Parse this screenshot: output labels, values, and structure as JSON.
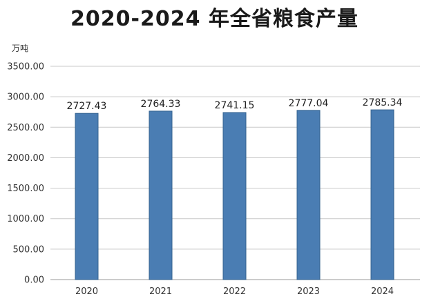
{
  "chart_data": {
    "type": "bar",
    "title": "2020-2024 年全省粮食产量",
    "ylabel": "万吨",
    "xlabel": "",
    "categories": [
      "2020",
      "2021",
      "2022",
      "2023",
      "2024"
    ],
    "values": [
      2727.43,
      2764.33,
      2741.15,
      2777.04,
      2785.34
    ],
    "value_labels": [
      "2727.43",
      "2764.33",
      "2741.15",
      "2777.04",
      "2785.34"
    ],
    "ylim": [
      0,
      3500
    ],
    "yticks": [
      0,
      500,
      1000,
      1500,
      2000,
      2500,
      3000,
      3500
    ],
    "ytick_labels": [
      "0.00",
      "500.00",
      "1000.00",
      "1500.00",
      "2000.00",
      "2500.00",
      "3000.00",
      "3500.00"
    ],
    "grid": true,
    "legend": "none",
    "bar_color": "#4a7db3",
    "bar_edge_color": "#35638f"
  }
}
